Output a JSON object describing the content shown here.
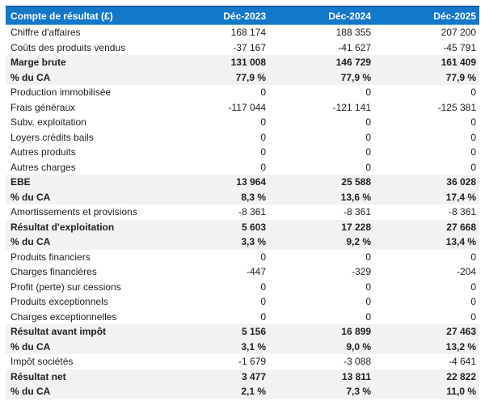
{
  "colors": {
    "header_bg": "#1478c8",
    "header_border_top": "#0d5fa3",
    "header_text": "#ffffff",
    "emphasis_row_bg": "#f2f2f2",
    "body_text": "#212121"
  },
  "table": {
    "header": {
      "label": "Compte de résultat (£)",
      "columns": [
        "Déc-2023",
        "Déc-2024",
        "Déc-2025"
      ]
    },
    "rows": [
      {
        "label": "Chiffre d'affaires",
        "values": [
          "168 174",
          "188 355",
          "207 200"
        ],
        "emphasis": false
      },
      {
        "label": "Coûts des produits vendus",
        "values": [
          "-37 167",
          "-41 627",
          "-45 791"
        ],
        "emphasis": false
      },
      {
        "label": "Marge brute",
        "values": [
          "131 008",
          "146 729",
          "161 409"
        ],
        "emphasis": true
      },
      {
        "label": "% du CA",
        "values": [
          "77,9 %",
          "77,9 %",
          "77,9 %"
        ],
        "emphasis": true
      },
      {
        "label": "Production immobilisée",
        "values": [
          "0",
          "0",
          "0"
        ],
        "emphasis": false
      },
      {
        "label": "Frais généraux",
        "values": [
          "-117 044",
          "-121 141",
          "-125 381"
        ],
        "emphasis": false
      },
      {
        "label": "Subv. exploitation",
        "values": [
          "0",
          "0",
          "0"
        ],
        "emphasis": false
      },
      {
        "label": "Loyers crédits bails",
        "values": [
          "0",
          "0",
          "0"
        ],
        "emphasis": false
      },
      {
        "label": "Autres produits",
        "values": [
          "0",
          "0",
          "0"
        ],
        "emphasis": false
      },
      {
        "label": "Autres charges",
        "values": [
          "0",
          "0",
          "0"
        ],
        "emphasis": false
      },
      {
        "label": "EBE",
        "values": [
          "13 964",
          "25 588",
          "36 028"
        ],
        "emphasis": true
      },
      {
        "label": "% du CA",
        "values": [
          "8,3 %",
          "13,6 %",
          "17,4 %"
        ],
        "emphasis": true
      },
      {
        "label": "Amortissements et provisions",
        "values": [
          "-8 361",
          "-8 361",
          "-8 361"
        ],
        "emphasis": false
      },
      {
        "label": "Résultat d'exploitation",
        "values": [
          "5 603",
          "17 228",
          "27 668"
        ],
        "emphasis": true
      },
      {
        "label": "% du CA",
        "values": [
          "3,3 %",
          "9,2 %",
          "13,4 %"
        ],
        "emphasis": true
      },
      {
        "label": "Produits financiers",
        "values": [
          "0",
          "0",
          "0"
        ],
        "emphasis": false
      },
      {
        "label": "Charges financières",
        "values": [
          "-447",
          "-329",
          "-204"
        ],
        "emphasis": false
      },
      {
        "label": "Profit (perte) sur cessions",
        "values": [
          "0",
          "0",
          "0"
        ],
        "emphasis": false
      },
      {
        "label": "Produits exceptionnels",
        "values": [
          "0",
          "0",
          "0"
        ],
        "emphasis": false
      },
      {
        "label": "Charges exceptionnelles",
        "values": [
          "0",
          "0",
          "0"
        ],
        "emphasis": false
      },
      {
        "label": "Résultat avant impôt",
        "values": [
          "5 156",
          "16 899",
          "27 463"
        ],
        "emphasis": true
      },
      {
        "label": "% du CA",
        "values": [
          "3,1 %",
          "9,0 %",
          "13,2 %"
        ],
        "emphasis": true
      },
      {
        "label": "Impôt sociétés",
        "values": [
          "-1 679",
          "-3 088",
          "-4 641"
        ],
        "emphasis": false
      },
      {
        "label": "Résultat net",
        "values": [
          "3 477",
          "13 811",
          "22 822"
        ],
        "emphasis": true
      },
      {
        "label": "% du CA",
        "values": [
          "2,1 %",
          "7,3 %",
          "11,0 %"
        ],
        "emphasis": true
      }
    ]
  }
}
